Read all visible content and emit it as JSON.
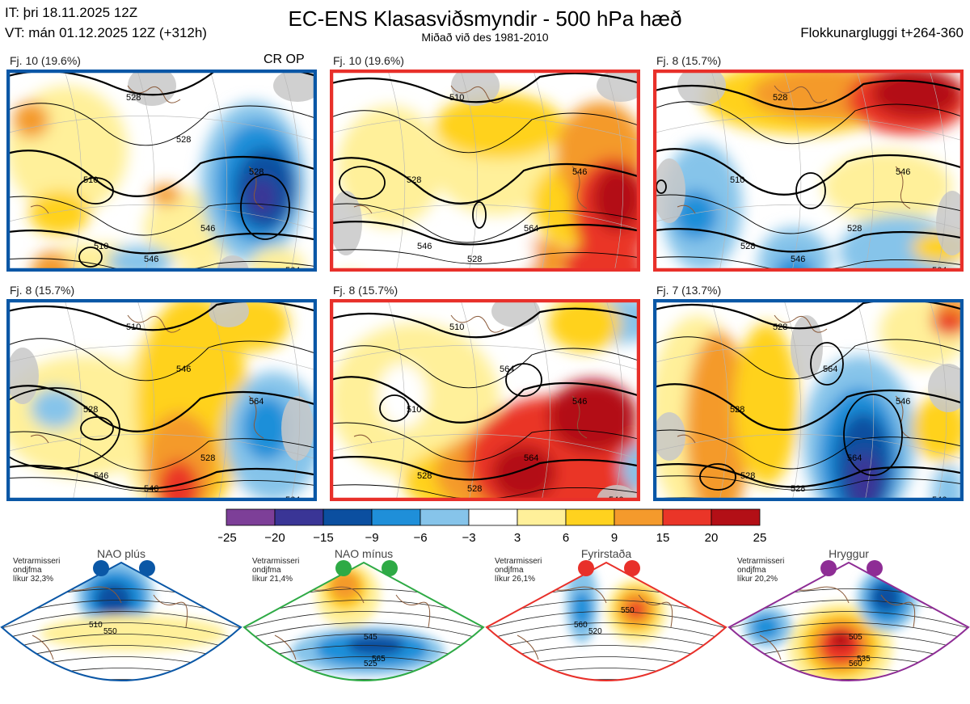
{
  "header": {
    "it_line": "IT: þri 18.11.2025 12Z",
    "vt_line": "VT: mán 01.12.2025 12Z  (+312h)",
    "title": "EC-ENS Klasasviðsmyndir - 500 hPa hæð",
    "subtitle": "Miðað við des 1981-2010",
    "window": "Flokkunargluggi t+264-360"
  },
  "colors": {
    "regime_blue": "#0a57a6",
    "regime_red": "#e8302a",
    "regime_green": "#2eaa45",
    "regime_purple": "#8e2d95",
    "land_grey": "#c8c8c8",
    "coast": "#8a5a3a"
  },
  "clusters": [
    {
      "title": "Fj. 10 (19.6%)",
      "frame": "blue",
      "op_label": "CR OP",
      "contours": [
        "528",
        "510",
        "510",
        "528",
        "546",
        "546",
        "564",
        "528"
      ]
    },
    {
      "title": "Fj. 10 (19.6%)",
      "frame": "red",
      "op_label": "",
      "contours": [
        "510",
        "528",
        "546",
        "546",
        "564",
        "528"
      ]
    },
    {
      "title": "Fj. 8 (15.7%)",
      "frame": "red",
      "op_label": "",
      "contours": [
        "528",
        "510",
        "528",
        "546",
        "528",
        "546",
        "564"
      ]
    },
    {
      "title": "Fj. 8 (15.7%)",
      "frame": "blue",
      "op_label": "",
      "contours": [
        "510",
        "528",
        "546",
        "564",
        "528",
        "546",
        "564",
        "546"
      ]
    },
    {
      "title": "Fj. 8 (15.7%)",
      "frame": "red",
      "op_label": "",
      "contours": [
        "510",
        "510",
        "528",
        "546",
        "564",
        "528",
        "546",
        "564"
      ]
    },
    {
      "title": "Fj. 7 (13.7%)",
      "frame": "blue",
      "op_label": "",
      "contours": [
        "528",
        "528",
        "528",
        "546",
        "564",
        "528",
        "546",
        "564"
      ]
    }
  ],
  "colorbar": {
    "ticks": [
      "−25",
      "−20",
      "−15",
      "−9",
      "−6",
      "−3",
      "3",
      "6",
      "9",
      "15",
      "20",
      "25"
    ],
    "colors": [
      "#7d3f98",
      "#3a3596",
      "#0b4fa0",
      "#1f8fd9",
      "#86c4ea",
      "#ffffff",
      "#fff09a",
      "#ffd21f",
      "#f49a2c",
      "#ea3528",
      "#b30f16"
    ]
  },
  "regimes": [
    {
      "name": "NAO plús",
      "color_key": "regime_blue",
      "note1": "Vetrarmisseri",
      "note2": "ondjfma",
      "note3": "líkur 32,3%",
      "contours": [
        "510",
        "550"
      ]
    },
    {
      "name": "NAO mínus",
      "color_key": "regime_green",
      "note1": "Vetrarmisseri",
      "note2": "ondjfma",
      "note3": "líkur 21,4%",
      "contours": [
        "525",
        "545",
        "565"
      ]
    },
    {
      "name": "Fyrirstaða",
      "color_key": "regime_red",
      "note1": "Vetrarmisseri",
      "note2": "ondjfma",
      "note3": "líkur 26,1%",
      "contours": [
        "520",
        "550",
        "560"
      ]
    },
    {
      "name": "Hryggur",
      "color_key": "regime_purple",
      "note1": "Vetrarmisseri",
      "note2": "ondjfma",
      "note3": "líkur 20,2%",
      "contours": [
        "505",
        "535",
        "560"
      ]
    }
  ]
}
